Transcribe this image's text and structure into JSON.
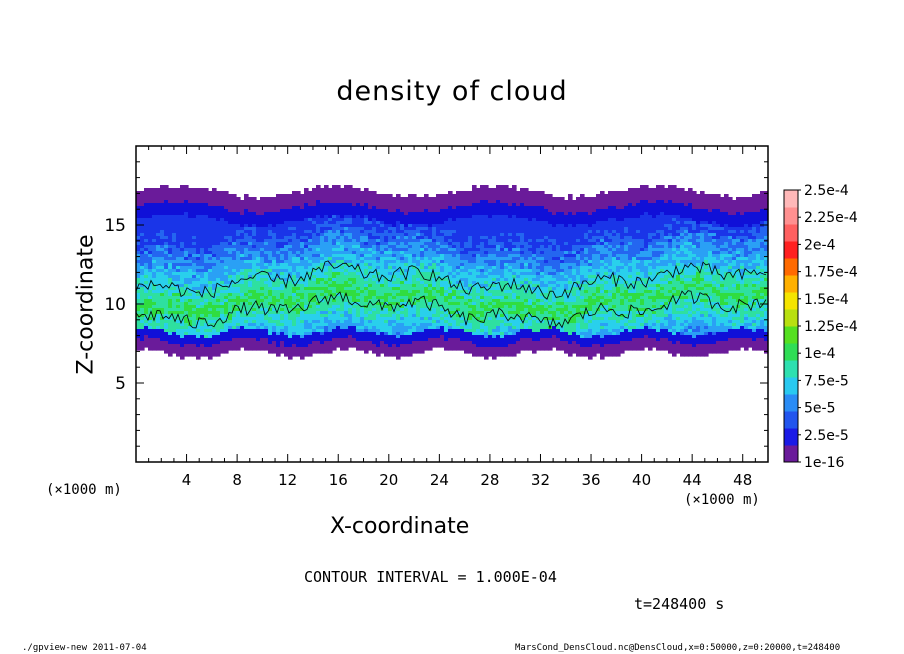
{
  "chart_data": {
    "type": "heatmap",
    "title": "density of cloud",
    "xlabel": "X-coordinate",
    "ylabel": "Z-coordinate",
    "x_unit_label": "(×1000 m)",
    "x_unit_label_right": "(×1000 m)",
    "xlim": [
      0,
      50
    ],
    "ylim": [
      0,
      20
    ],
    "xticks": [
      4,
      8,
      12,
      16,
      20,
      24,
      28,
      32,
      36,
      40,
      44,
      48
    ],
    "yticks": [
      5,
      10,
      15
    ],
    "grid": false,
    "colorbar": {
      "levels": [
        "1e-16",
        "2.5e-5",
        "5e-5",
        "7.5e-5",
        "1e-4",
        "1.25e-4",
        "1.5e-4",
        "1.75e-4",
        "2e-4",
        "2.25e-4",
        "2.5e-4"
      ],
      "colors": [
        "#6a1b9a",
        "#1a1ae6",
        "#2255ee",
        "#2a8cf5",
        "#29c9f0",
        "#2ee0b0",
        "#2fdd55",
        "#55e020",
        "#b8e010",
        "#f5e400",
        "#ffb000",
        "#ff6a00",
        "#ff2020",
        "#ff6060",
        "#ff9090",
        "#ffb8b8"
      ]
    },
    "cloud_layer": {
      "z_bottom_km": 7,
      "z_top_km": 17.2,
      "dense_core_z_km": 10.5,
      "contour_level": 0.0001
    },
    "contour_interval_text": "CONTOUR INTERVAL = 1.000E-04",
    "time_text": "t=248400 s"
  },
  "footer": {
    "left": "./gpview-new  2011-07-04",
    "right": "MarsCond_DensCloud.nc@DensCloud,x=0:50000,z=0:20000,t=248400"
  }
}
